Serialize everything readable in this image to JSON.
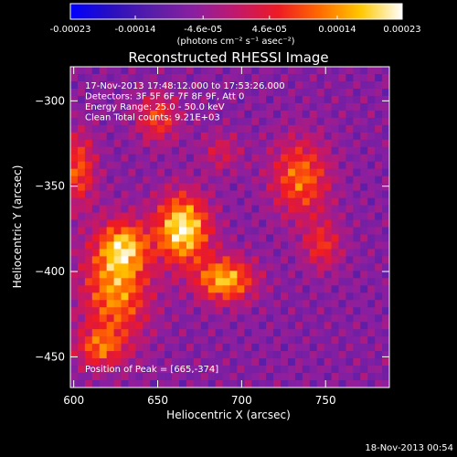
{
  "colorbar": {
    "tick_labels": [
      "-0.00023",
      "-0.00014",
      "-4.6e-05",
      "4.6e-05",
      "0.00014",
      "0.00023"
    ],
    "range": [
      -0.00023,
      0.00023
    ],
    "units_label": "(photons cm⁻² s⁻¹ asec⁻²)",
    "colors": [
      "#0000ff",
      "#2a0fbf",
      "#5a1ea8",
      "#8b1fa0",
      "#c2186b",
      "#ee1a24",
      "#ff6a00",
      "#ffc800",
      "#ffffff"
    ]
  },
  "chart_data": {
    "type": "heatmap",
    "title": "Reconstructed RHESSI Image",
    "xlabel": "Heliocentric X (arcsec)",
    "ylabel": "Heliocentric Y (arcsec)",
    "xlim": [
      598,
      788
    ],
    "ylim": [
      -468,
      -280
    ],
    "x_ticks": [
      600,
      650,
      700,
      750
    ],
    "y_ticks": [
      -300,
      -350,
      -400,
      -450
    ],
    "info_lines": [
      "17-Nov-2013 17:48:12.000 to 17:53:26.000",
      "Detectors: 3F 5F 6F 7F 8F 9F, Att 0",
      "Energy Range: 25.0 - 50.0 keV",
      "Clean    Total counts: 9.21E+03"
    ],
    "peak_label": "Position of Peak = [665,-374]",
    "peak": [
      665,
      -374
    ],
    "sources": [
      {
        "x": 665,
        "y": -375,
        "sx": 11,
        "sy": 14,
        "amp": 1.0
      },
      {
        "x": 690,
        "y": -405,
        "sx": 12,
        "sy": 9,
        "amp": 0.82
      },
      {
        "x": 735,
        "y": -345,
        "sx": 12,
        "sy": 16,
        "amp": 0.62
      },
      {
        "x": 748,
        "y": -385,
        "sx": 8,
        "sy": 10,
        "amp": 0.45
      },
      {
        "x": 625,
        "y": -410,
        "sx": 14,
        "sy": 22,
        "amp": 0.72
      },
      {
        "x": 630,
        "y": -385,
        "sx": 10,
        "sy": 10,
        "amp": 0.6
      },
      {
        "x": 603,
        "y": -340,
        "sx": 7,
        "sy": 15,
        "amp": 0.55
      },
      {
        "x": 650,
        "y": -310,
        "sx": 9,
        "sy": 10,
        "amp": 0.5
      },
      {
        "x": 615,
        "y": -445,
        "sx": 10,
        "sy": 8,
        "amp": 0.5
      },
      {
        "x": 688,
        "y": -330,
        "sx": 8,
        "sy": 8,
        "amp": 0.3
      }
    ]
  },
  "footer": {
    "date": "18-Nov-2013 00:54"
  }
}
